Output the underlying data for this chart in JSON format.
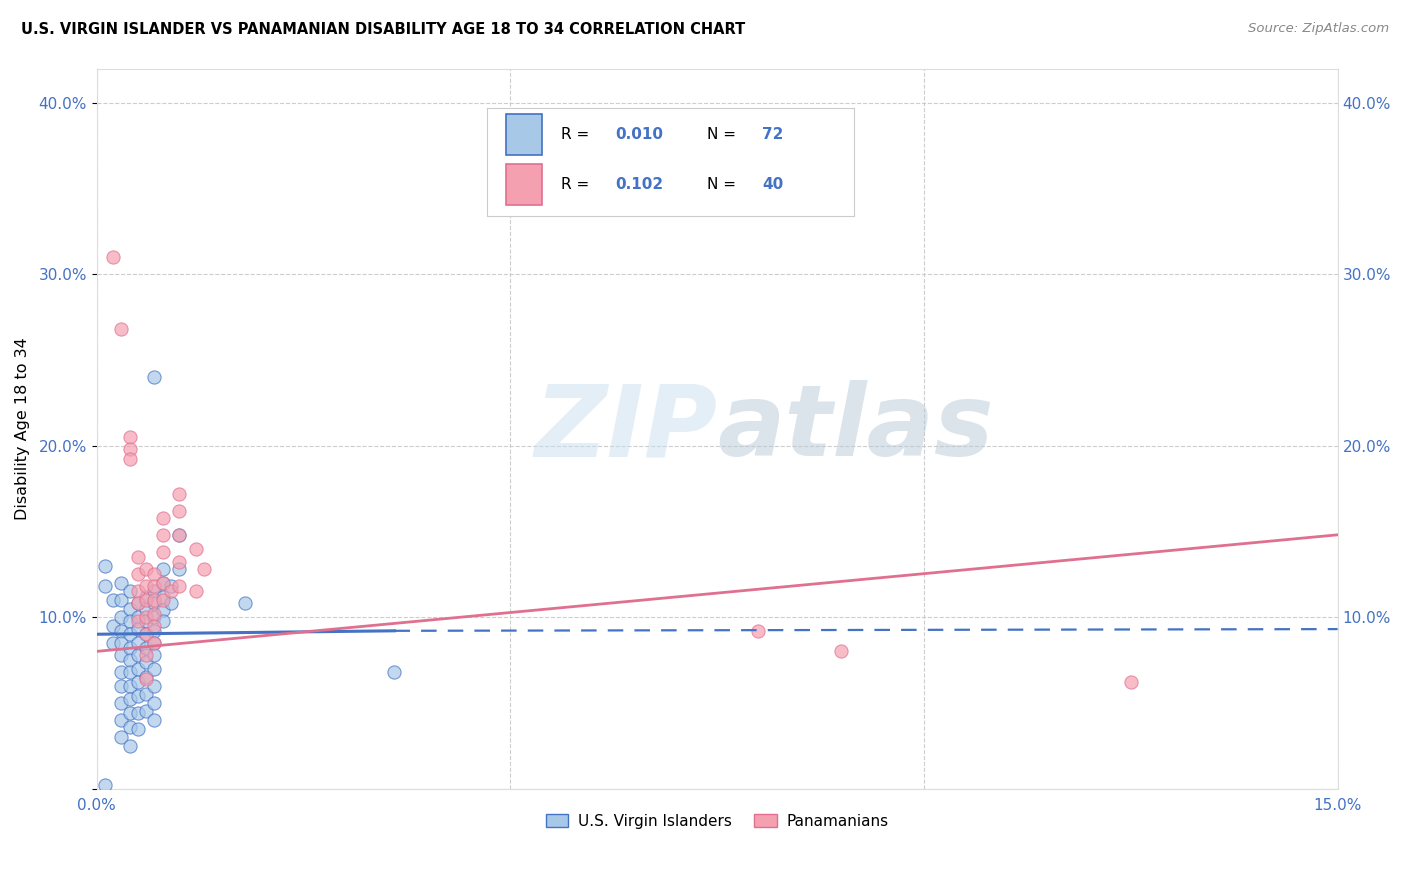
{
  "title": "U.S. VIRGIN ISLANDER VS PANAMANIAN DISABILITY AGE 18 TO 34 CORRELATION CHART",
  "source": "Source: ZipAtlas.com",
  "ylabel": "Disability Age 18 to 34",
  "xlim": [
    0.0,
    0.15
  ],
  "ylim": [
    0.0,
    0.42
  ],
  "color_blue": "#a8c8e8",
  "color_pink": "#f4a0b0",
  "line_blue": "#4472c4",
  "line_pink": "#e07090",
  "watermark_zip": "ZIP",
  "watermark_atlas": "atlas",
  "background_color": "#ffffff",
  "grid_color": "#c8c8c8",
  "blue_scatter": [
    [
      0.001,
      0.13
    ],
    [
      0.001,
      0.118
    ],
    [
      0.001,
      0.002
    ],
    [
      0.002,
      0.11
    ],
    [
      0.002,
      0.095
    ],
    [
      0.002,
      0.085
    ],
    [
      0.003,
      0.12
    ],
    [
      0.003,
      0.11
    ],
    [
      0.003,
      0.1
    ],
    [
      0.003,
      0.092
    ],
    [
      0.003,
      0.085
    ],
    [
      0.003,
      0.078
    ],
    [
      0.003,
      0.068
    ],
    [
      0.003,
      0.06
    ],
    [
      0.003,
      0.05
    ],
    [
      0.003,
      0.04
    ],
    [
      0.003,
      0.03
    ],
    [
      0.004,
      0.115
    ],
    [
      0.004,
      0.105
    ],
    [
      0.004,
      0.098
    ],
    [
      0.004,
      0.09
    ],
    [
      0.004,
      0.082
    ],
    [
      0.004,
      0.075
    ],
    [
      0.004,
      0.068
    ],
    [
      0.004,
      0.06
    ],
    [
      0.004,
      0.052
    ],
    [
      0.004,
      0.044
    ],
    [
      0.004,
      0.036
    ],
    [
      0.004,
      0.025
    ],
    [
      0.005,
      0.108
    ],
    [
      0.005,
      0.1
    ],
    [
      0.005,
      0.093
    ],
    [
      0.005,
      0.085
    ],
    [
      0.005,
      0.078
    ],
    [
      0.005,
      0.07
    ],
    [
      0.005,
      0.062
    ],
    [
      0.005,
      0.054
    ],
    [
      0.005,
      0.044
    ],
    [
      0.005,
      0.035
    ],
    [
      0.006,
      0.112
    ],
    [
      0.006,
      0.105
    ],
    [
      0.006,
      0.098
    ],
    [
      0.006,
      0.09
    ],
    [
      0.006,
      0.082
    ],
    [
      0.006,
      0.074
    ],
    [
      0.006,
      0.065
    ],
    [
      0.006,
      0.055
    ],
    [
      0.006,
      0.045
    ],
    [
      0.007,
      0.24
    ],
    [
      0.007,
      0.115
    ],
    [
      0.007,
      0.108
    ],
    [
      0.007,
      0.1
    ],
    [
      0.007,
      0.092
    ],
    [
      0.007,
      0.085
    ],
    [
      0.007,
      0.078
    ],
    [
      0.007,
      0.07
    ],
    [
      0.007,
      0.06
    ],
    [
      0.007,
      0.05
    ],
    [
      0.007,
      0.04
    ],
    [
      0.008,
      0.128
    ],
    [
      0.008,
      0.12
    ],
    [
      0.008,
      0.112
    ],
    [
      0.008,
      0.104
    ],
    [
      0.008,
      0.098
    ],
    [
      0.009,
      0.118
    ],
    [
      0.009,
      0.108
    ],
    [
      0.01,
      0.148
    ],
    [
      0.01,
      0.128
    ],
    [
      0.018,
      0.108
    ],
    [
      0.036,
      0.068
    ]
  ],
  "pink_scatter": [
    [
      0.002,
      0.31
    ],
    [
      0.003,
      0.268
    ],
    [
      0.004,
      0.205
    ],
    [
      0.004,
      0.198
    ],
    [
      0.004,
      0.192
    ],
    [
      0.005,
      0.135
    ],
    [
      0.005,
      0.125
    ],
    [
      0.005,
      0.115
    ],
    [
      0.005,
      0.108
    ],
    [
      0.005,
      0.098
    ],
    [
      0.006,
      0.128
    ],
    [
      0.006,
      0.118
    ],
    [
      0.006,
      0.11
    ],
    [
      0.006,
      0.1
    ],
    [
      0.006,
      0.09
    ],
    [
      0.006,
      0.078
    ],
    [
      0.006,
      0.064
    ],
    [
      0.007,
      0.125
    ],
    [
      0.007,
      0.118
    ],
    [
      0.007,
      0.11
    ],
    [
      0.007,
      0.102
    ],
    [
      0.007,
      0.095
    ],
    [
      0.007,
      0.085
    ],
    [
      0.008,
      0.158
    ],
    [
      0.008,
      0.148
    ],
    [
      0.008,
      0.138
    ],
    [
      0.008,
      0.12
    ],
    [
      0.008,
      0.11
    ],
    [
      0.009,
      0.115
    ],
    [
      0.01,
      0.172
    ],
    [
      0.01,
      0.162
    ],
    [
      0.01,
      0.148
    ],
    [
      0.01,
      0.132
    ],
    [
      0.01,
      0.118
    ],
    [
      0.012,
      0.14
    ],
    [
      0.012,
      0.115
    ],
    [
      0.013,
      0.128
    ],
    [
      0.08,
      0.092
    ],
    [
      0.09,
      0.08
    ],
    [
      0.125,
      0.062
    ]
  ],
  "blue_line_solid": [
    [
      0.0,
      0.09
    ],
    [
      0.036,
      0.092
    ]
  ],
  "blue_line_dash": [
    [
      0.036,
      0.092
    ],
    [
      0.15,
      0.093
    ]
  ],
  "pink_line": [
    [
      0.0,
      0.08
    ],
    [
      0.15,
      0.148
    ]
  ]
}
